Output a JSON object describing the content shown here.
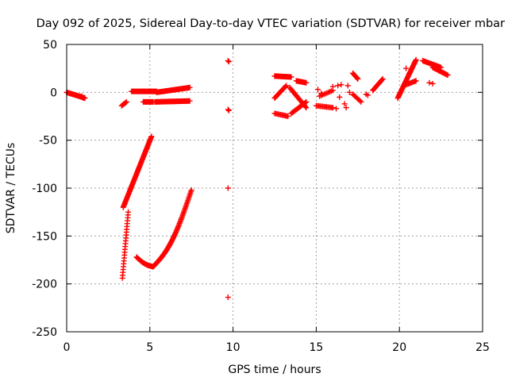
{
  "chart_data": {
    "type": "scatter",
    "title": "Day 092 of 2025, Sidereal Day-to-day VTEC variation (SDTVAR) for receiver mbar",
    "xlabel": "GPS time / hours",
    "ylabel": "SDTVAR / TECUs",
    "xlim": [
      0,
      25
    ],
    "ylim": [
      -250,
      50
    ],
    "xticks": [
      0,
      5,
      10,
      15,
      20,
      25
    ],
    "yticks": [
      -250,
      -200,
      -150,
      -100,
      -50,
      0,
      50
    ],
    "grid": true,
    "marker": "+",
    "color": "#ff0000",
    "segments": [
      {
        "name": "s1",
        "x0": 0.0,
        "x1": 1.1,
        "y0": 0,
        "y1": -6,
        "n": 24
      },
      {
        "name": "s2",
        "x0": 3.3,
        "x1": 3.6,
        "y0": -14,
        "y1": -10,
        "n": 6
      },
      {
        "name": "s3",
        "x0": 3.4,
        "x1": 5.1,
        "y0": -120,
        "y1": -46,
        "n": 70
      },
      {
        "name": "s4",
        "x0": 3.35,
        "x1": 3.7,
        "y0": -194,
        "y1": -125,
        "n": 24
      },
      {
        "name": "s5",
        "x0": 4.2,
        "x1": 5.2,
        "y0": -172,
        "y1": -182,
        "n": 22
      },
      {
        "name": "s6",
        "x0": 5.2,
        "x1": 7.5,
        "y0": -182,
        "y1": -102,
        "n": 75
      },
      {
        "name": "s7",
        "x0": 3.9,
        "x1": 5.4,
        "y0": 1,
        "y1": 1,
        "n": 30
      },
      {
        "name": "s8",
        "x0": 4.6,
        "x1": 5.2,
        "y0": -10,
        "y1": -10,
        "n": 12
      },
      {
        "name": "s9",
        "x0": 5.4,
        "x1": 7.4,
        "y0": 0,
        "y1": 5,
        "n": 40
      },
      {
        "name": "s10",
        "x0": 5.3,
        "x1": 7.4,
        "y0": -10,
        "y1": -9,
        "n": 40
      },
      {
        "name": "s11",
        "x0": 12.5,
        "x1": 13.5,
        "y0": 17,
        "y1": 16,
        "n": 22
      },
      {
        "name": "s12",
        "x0": 12.5,
        "x1": 13.2,
        "y0": -6,
        "y1": 7,
        "n": 14
      },
      {
        "name": "s13",
        "x0": 12.5,
        "x1": 13.3,
        "y0": -22,
        "y1": -25,
        "n": 12
      },
      {
        "name": "s14",
        "x0": 13.5,
        "x1": 14.4,
        "y0": -22,
        "y1": -10,
        "n": 16
      },
      {
        "name": "s15",
        "x0": 13.8,
        "x1": 14.4,
        "y0": 12,
        "y1": 10,
        "n": 12
      },
      {
        "name": "s16",
        "x0": 13.4,
        "x1": 14.4,
        "y0": 5,
        "y1": -16,
        "n": 20
      },
      {
        "name": "s17",
        "x0": 15.0,
        "x1": 16.0,
        "y0": -14,
        "y1": -16,
        "n": 14
      },
      {
        "name": "s18",
        "x0": 15.2,
        "x1": 16.0,
        "y0": -4,
        "y1": 2,
        "n": 10
      },
      {
        "name": "s19",
        "x0": 17.2,
        "x1": 17.5,
        "y0": 20,
        "y1": 14,
        "n": 8
      },
      {
        "name": "s20",
        "x0": 17.2,
        "x1": 17.7,
        "y0": -2,
        "y1": -10,
        "n": 8
      },
      {
        "name": "s21",
        "x0": 18.4,
        "x1": 19.0,
        "y0": 2,
        "y1": 14,
        "n": 14
      },
      {
        "name": "s22",
        "x0": 19.9,
        "x1": 21.0,
        "y0": -6,
        "y1": 34,
        "n": 40
      },
      {
        "name": "s23",
        "x0": 20.4,
        "x1": 21.0,
        "y0": 8,
        "y1": 12,
        "n": 10
      },
      {
        "name": "s24",
        "x0": 21.4,
        "x1": 22.5,
        "y0": 33,
        "y1": 26,
        "n": 20
      },
      {
        "name": "s25",
        "x0": 22.0,
        "x1": 22.9,
        "y0": 26,
        "y1": 18,
        "n": 16
      }
    ],
    "points": [
      {
        "x": 9.7,
        "y": 33
      },
      {
        "x": 9.75,
        "y": 32
      },
      {
        "x": 9.7,
        "y": -18
      },
      {
        "x": 9.75,
        "y": -19
      },
      {
        "x": 9.7,
        "y": -100
      },
      {
        "x": 9.7,
        "y": -214
      },
      {
        "x": 0.9,
        "y": -4
      },
      {
        "x": 1.0,
        "y": -6
      },
      {
        "x": 16.0,
        "y": 6
      },
      {
        "x": 16.3,
        "y": 7
      },
      {
        "x": 16.2,
        "y": -17
      },
      {
        "x": 16.8,
        "y": -16
      },
      {
        "x": 16.5,
        "y": 8
      },
      {
        "x": 16.9,
        "y": 7
      },
      {
        "x": 16.4,
        "y": -5
      },
      {
        "x": 17.0,
        "y": 0
      },
      {
        "x": 16.7,
        "y": -12
      },
      {
        "x": 18.0,
        "y": -2
      },
      {
        "x": 18.1,
        "y": -3
      },
      {
        "x": 20.6,
        "y": 20
      },
      {
        "x": 20.4,
        "y": 25
      },
      {
        "x": 21.8,
        "y": 10
      },
      {
        "x": 22.0,
        "y": 9
      },
      {
        "x": 15.1,
        "y": 3
      },
      {
        "x": 15.3,
        "y": -1
      }
    ]
  }
}
